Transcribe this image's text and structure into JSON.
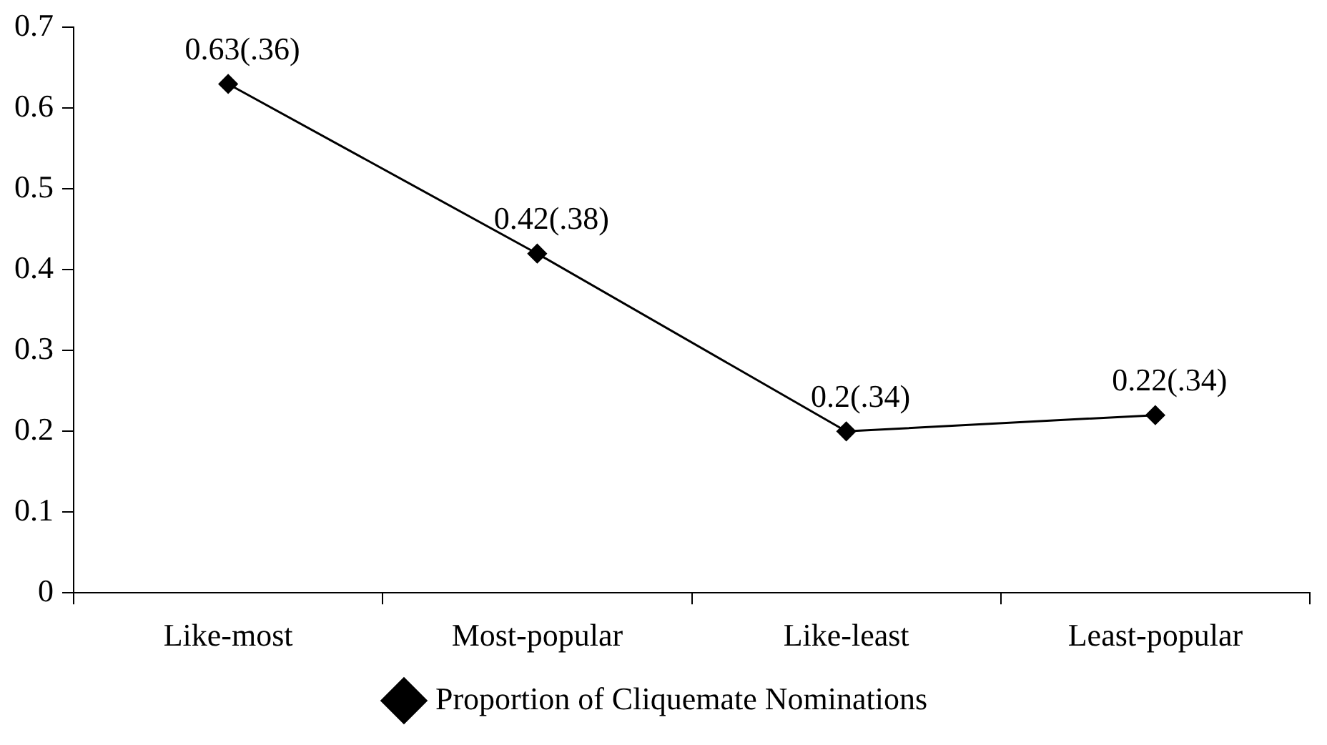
{
  "chart_data": {
    "type": "line",
    "categories": [
      "Like-most",
      "Most-popular",
      "Like-least",
      "Least-popular"
    ],
    "series": [
      {
        "name": "Proportion of Cliquemate Nominations",
        "color": "#000000",
        "values": [
          0.63,
          0.42,
          0.2,
          0.22
        ],
        "value_labels": [
          "0.63(.36)",
          "0.42(.38)",
          "0.2(.34)",
          "0.22(.34)"
        ]
      }
    ],
    "ylim": [
      0,
      0.7
    ],
    "yticks": [
      0,
      0.1,
      0.2,
      0.3,
      0.4,
      0.5,
      0.6,
      0.7
    ],
    "grid": false,
    "legend": "bottom",
    "marker": "diamond",
    "line_style": "solid"
  }
}
